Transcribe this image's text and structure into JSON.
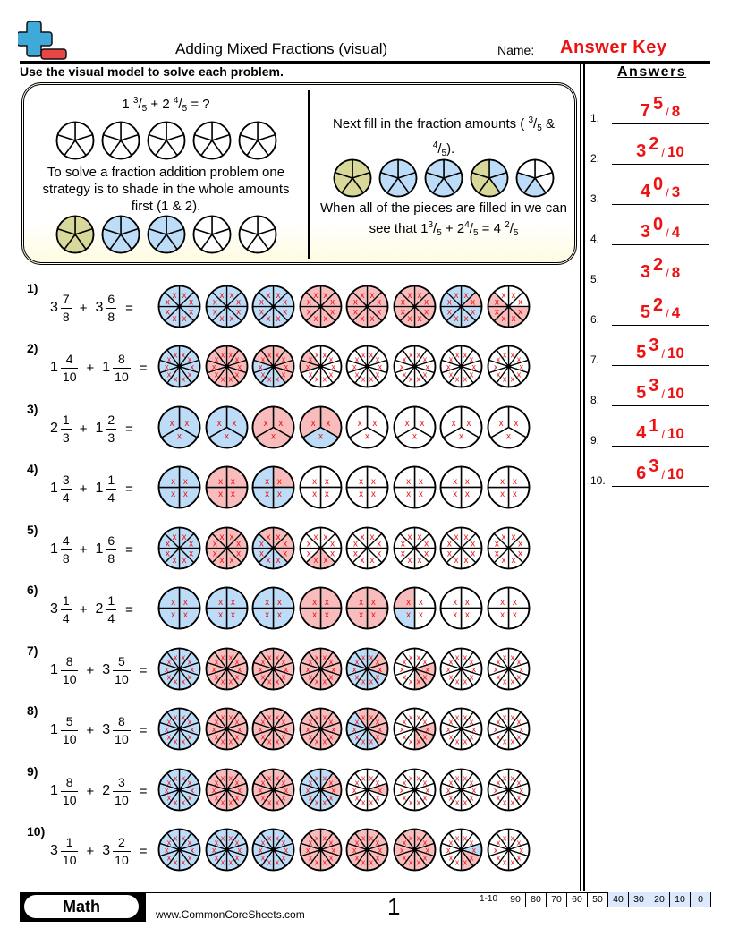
{
  "header": {
    "logo": "plus-minus-logo",
    "title": "Adding Mixed Fractions (visual)",
    "name_label": "Name:",
    "name_value": "Answer Key"
  },
  "instructions": "Use the visual model to solve each problem.",
  "colors": {
    "blue": "#bcdcf8",
    "red": "#f8bcbc",
    "olive": "#d7d89a",
    "white": "#ffffff",
    "x_mark": "#ee1111",
    "answer": "#ee1111"
  },
  "example": {
    "equation": {
      "w1": "1",
      "n1": "3",
      "d1": "5",
      "op": "+",
      "w2": "2",
      "n2": "4",
      "d2": "5",
      "tail": "= ?"
    },
    "step1_text": "To solve a fraction addition problem one strategy is to shade in the whole amounts first (1 & 2).",
    "step2_text_a": "Next fill in the fraction amounts (",
    "step2_frac1_n": "3",
    "step2_frac1_d": "5",
    "step2_amp": "&",
    "step2_frac2_n": "4",
    "step2_frac2_d": "5",
    "step2_close": ").",
    "step3_text": "When all of the pieces are filled in we can",
    "step3_text_b": "see that",
    "step3_eq": {
      "w1": "1",
      "n1": "3",
      "d1": "5",
      "op": "+",
      "w2": "2",
      "n2": "4",
      "d2": "5",
      "eq": "=",
      "rw": "4",
      "rn": "2",
      "rd": "5"
    },
    "circles_blank": [
      [
        "w",
        "w",
        "w",
        "w",
        "w"
      ],
      [
        "w",
        "w",
        "w",
        "w",
        "w"
      ],
      [
        "w",
        "w",
        "w",
        "w",
        "w"
      ],
      [
        "w",
        "w",
        "w",
        "w",
        "w"
      ],
      [
        "w",
        "w",
        "w",
        "w",
        "w"
      ]
    ],
    "circles_wholes": [
      [
        "o",
        "o",
        "o",
        "o",
        "o"
      ],
      [
        "b",
        "b",
        "b",
        "b",
        "b"
      ],
      [
        "b",
        "b",
        "b",
        "b",
        "b"
      ],
      [
        "w",
        "w",
        "w",
        "w",
        "w"
      ],
      [
        "w",
        "w",
        "w",
        "w",
        "w"
      ]
    ],
    "circles_filled": [
      [
        "o",
        "o",
        "o",
        "o",
        "o"
      ],
      [
        "b",
        "b",
        "b",
        "b",
        "b"
      ],
      [
        "b",
        "b",
        "b",
        "b",
        "b"
      ],
      [
        "b",
        "b",
        "o",
        "o",
        "o"
      ],
      [
        "w",
        "w",
        "b",
        "b",
        "w"
      ]
    ]
  },
  "problems": [
    {
      "label": "1)",
      "a": {
        "w": "3",
        "n": "7",
        "d": "8"
      },
      "b": {
        "w": "3",
        "n": "6",
        "d": "8"
      },
      "denom": 8,
      "circles": [
        [
          "b",
          "b",
          "b",
          "b",
          "b",
          "b",
          "b",
          "b"
        ],
        [
          "b",
          "b",
          "b",
          "b",
          "b",
          "b",
          "b",
          "b"
        ],
        [
          "b",
          "b",
          "b",
          "b",
          "b",
          "b",
          "b",
          "b"
        ],
        [
          "r",
          "r",
          "r",
          "r",
          "r",
          "r",
          "r",
          "r"
        ],
        [
          "r",
          "r",
          "r",
          "r",
          "r",
          "r",
          "r",
          "r"
        ],
        [
          "r",
          "r",
          "r",
          "r",
          "r",
          "r",
          "r",
          "r"
        ],
        [
          "b",
          "r",
          "b",
          "b",
          "b",
          "b",
          "b",
          "b"
        ],
        [
          "w",
          "w",
          "r",
          "r",
          "r",
          "r",
          "r",
          "w"
        ]
      ]
    },
    {
      "label": "2)",
      "a": {
        "w": "1",
        "n": "4",
        "d": "10"
      },
      "b": {
        "w": "1",
        "n": "8",
        "d": "10"
      },
      "denom": 10,
      "circles": [
        [
          "b",
          "b",
          "b",
          "b",
          "b",
          "b",
          "b",
          "b",
          "b",
          "b"
        ],
        [
          "r",
          "r",
          "r",
          "r",
          "r",
          "r",
          "r",
          "r",
          "r",
          "r"
        ],
        [
          "r",
          "r",
          "r",
          "r",
          "b",
          "b",
          "b",
          "b",
          "r",
          "r"
        ],
        [
          "w",
          "w",
          "w",
          "w",
          "w",
          "w",
          "w",
          "r",
          "r",
          "w"
        ],
        [
          "w",
          "w",
          "w",
          "w",
          "w",
          "w",
          "w",
          "w",
          "w",
          "w"
        ],
        [
          "w",
          "w",
          "w",
          "w",
          "w",
          "w",
          "w",
          "w",
          "w",
          "w"
        ],
        [
          "w",
          "w",
          "w",
          "w",
          "w",
          "w",
          "w",
          "w",
          "w",
          "w"
        ],
        [
          "w",
          "w",
          "w",
          "w",
          "w",
          "w",
          "w",
          "w",
          "w",
          "w"
        ]
      ]
    },
    {
      "label": "3)",
      "a": {
        "w": "2",
        "n": "1",
        "d": "3"
      },
      "b": {
        "w": "1",
        "n": "2",
        "d": "3"
      },
      "denom": 3,
      "circles": [
        [
          "b",
          "b",
          "b"
        ],
        [
          "b",
          "b",
          "b"
        ],
        [
          "r",
          "r",
          "r"
        ],
        [
          "r",
          "b",
          "r"
        ],
        [
          "w",
          "w",
          "w"
        ],
        [
          "w",
          "w",
          "w"
        ],
        [
          "w",
          "w",
          "w"
        ],
        [
          "w",
          "w",
          "w"
        ]
      ]
    },
    {
      "label": "4)",
      "a": {
        "w": "1",
        "n": "3",
        "d": "4"
      },
      "b": {
        "w": "1",
        "n": "1",
        "d": "4"
      },
      "denom": 4,
      "circles": [
        [
          "b",
          "b",
          "b",
          "b"
        ],
        [
          "r",
          "r",
          "r",
          "r"
        ],
        [
          "r",
          "b",
          "b",
          "b"
        ],
        [
          "w",
          "w",
          "w",
          "w"
        ],
        [
          "w",
          "w",
          "w",
          "w"
        ],
        [
          "w",
          "w",
          "w",
          "w"
        ],
        [
          "w",
          "w",
          "w",
          "w"
        ],
        [
          "w",
          "w",
          "w",
          "w"
        ]
      ]
    },
    {
      "label": "5)",
      "a": {
        "w": "1",
        "n": "4",
        "d": "8"
      },
      "b": {
        "w": "1",
        "n": "6",
        "d": "8"
      },
      "denom": 8,
      "circles": [
        [
          "b",
          "b",
          "b",
          "b",
          "b",
          "b",
          "b",
          "b"
        ],
        [
          "r",
          "r",
          "r",
          "r",
          "r",
          "r",
          "r",
          "r"
        ],
        [
          "r",
          "r",
          "r",
          "b",
          "b",
          "b",
          "b",
          "r"
        ],
        [
          "w",
          "w",
          "w",
          "r",
          "r",
          "w",
          "w",
          "w"
        ],
        [
          "w",
          "w",
          "w",
          "w",
          "w",
          "w",
          "w",
          "w"
        ],
        [
          "w",
          "w",
          "w",
          "w",
          "w",
          "w",
          "w",
          "w"
        ],
        [
          "w",
          "w",
          "w",
          "w",
          "w",
          "w",
          "w",
          "w"
        ],
        [
          "w",
          "w",
          "w",
          "w",
          "w",
          "w",
          "w",
          "w"
        ]
      ]
    },
    {
      "label": "6)",
      "a": {
        "w": "3",
        "n": "1",
        "d": "4"
      },
      "b": {
        "w": "2",
        "n": "1",
        "d": "4"
      },
      "denom": 4,
      "circles": [
        [
          "b",
          "b",
          "b",
          "b"
        ],
        [
          "b",
          "b",
          "b",
          "b"
        ],
        [
          "b",
          "b",
          "b",
          "b"
        ],
        [
          "r",
          "r",
          "r",
          "r"
        ],
        [
          "r",
          "r",
          "r",
          "r"
        ],
        [
          "w",
          "w",
          "b",
          "r"
        ],
        [
          "w",
          "w",
          "w",
          "w"
        ],
        [
          "w",
          "w",
          "w",
          "w"
        ]
      ]
    },
    {
      "label": "7)",
      "a": {
        "w": "1",
        "n": "8",
        "d": "10"
      },
      "b": {
        "w": "3",
        "n": "5",
        "d": "10"
      },
      "denom": 10,
      "circles": [
        [
          "b",
          "b",
          "b",
          "b",
          "b",
          "b",
          "b",
          "b",
          "b",
          "b"
        ],
        [
          "r",
          "r",
          "r",
          "r",
          "r",
          "r",
          "r",
          "r",
          "r",
          "r"
        ],
        [
          "r",
          "r",
          "r",
          "r",
          "r",
          "r",
          "r",
          "r",
          "r",
          "r"
        ],
        [
          "r",
          "r",
          "r",
          "r",
          "r",
          "r",
          "r",
          "r",
          "r",
          "r"
        ],
        [
          "b",
          "r",
          "r",
          "b",
          "b",
          "b",
          "b",
          "b",
          "b",
          "b"
        ],
        [
          "w",
          "w",
          "r",
          "r",
          "r",
          "w",
          "w",
          "w",
          "w",
          "w"
        ],
        [
          "w",
          "w",
          "w",
          "w",
          "w",
          "w",
          "w",
          "w",
          "w",
          "w"
        ],
        [
          "w",
          "w",
          "w",
          "w",
          "w",
          "w",
          "w",
          "w",
          "w",
          "w"
        ]
      ]
    },
    {
      "label": "8)",
      "a": {
        "w": "1",
        "n": "5",
        "d": "10"
      },
      "b": {
        "w": "3",
        "n": "8",
        "d": "10"
      },
      "denom": 10,
      "circles": [
        [
          "b",
          "b",
          "b",
          "b",
          "b",
          "b",
          "b",
          "b",
          "b",
          "b"
        ],
        [
          "r",
          "r",
          "r",
          "r",
          "r",
          "r",
          "r",
          "r",
          "r",
          "r"
        ],
        [
          "r",
          "r",
          "r",
          "r",
          "r",
          "r",
          "r",
          "r",
          "r",
          "r"
        ],
        [
          "r",
          "r",
          "r",
          "r",
          "r",
          "r",
          "r",
          "r",
          "r",
          "r"
        ],
        [
          "r",
          "r",
          "r",
          "r",
          "b",
          "b",
          "b",
          "b",
          "b",
          "r"
        ],
        [
          "w",
          "w",
          "r",
          "r",
          "r",
          "w",
          "w",
          "w",
          "w",
          "w"
        ],
        [
          "w",
          "w",
          "w",
          "w",
          "w",
          "w",
          "w",
          "w",
          "w",
          "w"
        ],
        [
          "w",
          "w",
          "w",
          "w",
          "w",
          "w",
          "w",
          "w",
          "w",
          "w"
        ]
      ]
    },
    {
      "label": "9)",
      "a": {
        "w": "1",
        "n": "8",
        "d": "10"
      },
      "b": {
        "w": "2",
        "n": "3",
        "d": "10"
      },
      "denom": 10,
      "circles": [
        [
          "b",
          "b",
          "b",
          "b",
          "b",
          "b",
          "b",
          "b",
          "b",
          "b"
        ],
        [
          "r",
          "r",
          "r",
          "r",
          "r",
          "r",
          "r",
          "r",
          "r",
          "r"
        ],
        [
          "r",
          "r",
          "r",
          "r",
          "r",
          "r",
          "r",
          "r",
          "r",
          "r"
        ],
        [
          "b",
          "r",
          "r",
          "b",
          "b",
          "b",
          "b",
          "b",
          "b",
          "b"
        ],
        [
          "w",
          "w",
          "r",
          "w",
          "w",
          "w",
          "w",
          "w",
          "w",
          "w"
        ],
        [
          "w",
          "w",
          "w",
          "w",
          "w",
          "w",
          "w",
          "w",
          "w",
          "w"
        ],
        [
          "w",
          "w",
          "w",
          "w",
          "w",
          "w",
          "w",
          "w",
          "w",
          "w"
        ],
        [
          "w",
          "w",
          "w",
          "w",
          "w",
          "w",
          "w",
          "w",
          "w",
          "w"
        ]
      ]
    },
    {
      "label": "10)",
      "a": {
        "w": "3",
        "n": "1",
        "d": "10"
      },
      "b": {
        "w": "3",
        "n": "2",
        "d": "10"
      },
      "denom": 10,
      "circles": [
        [
          "b",
          "b",
          "b",
          "b",
          "b",
          "b",
          "b",
          "b",
          "b",
          "b"
        ],
        [
          "b",
          "b",
          "b",
          "b",
          "b",
          "b",
          "b",
          "b",
          "b",
          "b"
        ],
        [
          "b",
          "b",
          "b",
          "b",
          "b",
          "b",
          "b",
          "b",
          "b",
          "b"
        ],
        [
          "r",
          "r",
          "r",
          "r",
          "r",
          "r",
          "r",
          "r",
          "r",
          "r"
        ],
        [
          "r",
          "r",
          "r",
          "r",
          "r",
          "r",
          "r",
          "r",
          "r",
          "r"
        ],
        [
          "r",
          "r",
          "r",
          "r",
          "r",
          "r",
          "r",
          "r",
          "r",
          "r"
        ],
        [
          "w",
          "w",
          "b",
          "r",
          "r",
          "w",
          "w",
          "w",
          "w",
          "w"
        ],
        [
          "w",
          "w",
          "w",
          "w",
          "w",
          "w",
          "w",
          "w",
          "w",
          "w"
        ]
      ]
    }
  ],
  "answers": {
    "title": "Answers",
    "items": [
      {
        "num": "1.",
        "w": "7",
        "n": "5",
        "d": "8"
      },
      {
        "num": "2.",
        "w": "3",
        "n": "2",
        "d": "10"
      },
      {
        "num": "3.",
        "w": "4",
        "n": "0",
        "d": "3"
      },
      {
        "num": "4.",
        "w": "3",
        "n": "0",
        "d": "4"
      },
      {
        "num": "5.",
        "w": "3",
        "n": "2",
        "d": "8"
      },
      {
        "num": "6.",
        "w": "5",
        "n": "2",
        "d": "4"
      },
      {
        "num": "7.",
        "w": "5",
        "n": "3",
        "d": "10"
      },
      {
        "num": "8.",
        "w": "5",
        "n": "3",
        "d": "10"
      },
      {
        "num": "9.",
        "w": "4",
        "n": "1",
        "d": "10"
      },
      {
        "num": "10.",
        "w": "6",
        "n": "3",
        "d": "10"
      }
    ]
  },
  "footer": {
    "subject": "Math",
    "site": "www.CommonCoreSheets.com",
    "page": "1",
    "score_label": "1-10",
    "scores": [
      "90",
      "80",
      "70",
      "60",
      "50",
      "40",
      "30",
      "20",
      "10",
      "0"
    ],
    "highlighted_from_index": 5
  }
}
